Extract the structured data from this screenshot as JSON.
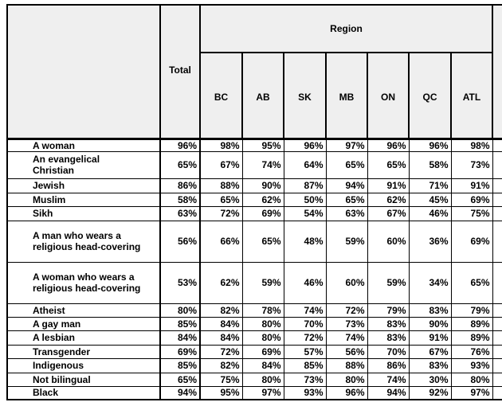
{
  "table": {
    "region": "Region",
    "total": "Total",
    "columns": [
      "BC",
      "AB",
      "SK",
      "MB",
      "ON",
      "QC",
      "ATL"
    ],
    "rows": [
      [
        "A woman",
        "96%",
        "98%",
        "95%",
        "96%",
        "97%",
        "96%",
        "96%",
        "98%"
      ],
      [
        "An evangelical Christian",
        "65%",
        "67%",
        "74%",
        "64%",
        "65%",
        "65%",
        "58%",
        "73%"
      ],
      [
        "Jewish",
        "86%",
        "88%",
        "90%",
        "87%",
        "94%",
        "91%",
        "71%",
        "91%"
      ],
      [
        "Muslim",
        "58%",
        "65%",
        "62%",
        "50%",
        "65%",
        "62%",
        "45%",
        "69%"
      ],
      [
        "Sikh",
        "63%",
        "72%",
        "69%",
        "54%",
        "63%",
        "67%",
        "46%",
        "75%"
      ],
      [
        "A man who wears a religious head-covering",
        "56%",
        "66%",
        "65%",
        "48%",
        "59%",
        "60%",
        "36%",
        "69%"
      ],
      [
        "A woman who wears a religious head-covering",
        "53%",
        "62%",
        "59%",
        "46%",
        "60%",
        "59%",
        "34%",
        "65%"
      ],
      [
        "Atheist",
        "80%",
        "82%",
        "78%",
        "74%",
        "72%",
        "79%",
        "83%",
        "79%"
      ],
      [
        "A gay man",
        "85%",
        "84%",
        "80%",
        "70%",
        "73%",
        "83%",
        "90%",
        "89%"
      ],
      [
        "A lesbian",
        "84%",
        "84%",
        "80%",
        "72%",
        "74%",
        "83%",
        "91%",
        "89%"
      ],
      [
        "Transgender",
        "69%",
        "72%",
        "69%",
        "57%",
        "56%",
        "70%",
        "67%",
        "76%"
      ],
      [
        "Indigenous",
        "85%",
        "82%",
        "84%",
        "85%",
        "88%",
        "86%",
        "83%",
        "93%"
      ],
      [
        "Not bilingual",
        "65%",
        "75%",
        "80%",
        "73%",
        "80%",
        "74%",
        "30%",
        "80%"
      ],
      [
        "Black",
        "94%",
        "95%",
        "97%",
        "93%",
        "96%",
        "94%",
        "92%",
        "97%"
      ]
    ]
  }
}
